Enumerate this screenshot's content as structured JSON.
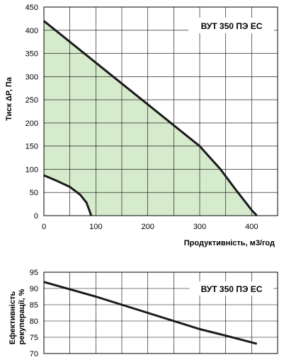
{
  "chart_data": [
    {
      "type": "area",
      "title": "ВУТ 350 ПЭ ЕС",
      "xlabel": "Продуктивність, м3/год",
      "ylabel": "Тиск ΔP, Па",
      "xlim": [
        0,
        450
      ],
      "ylim": [
        0,
        450
      ],
      "xticks": [
        0,
        100,
        200,
        300,
        400
      ],
      "yticks": [
        0,
        50,
        100,
        150,
        200,
        250,
        300,
        350,
        400,
        450
      ],
      "grid": true,
      "series": [
        {
          "role": "max-curve",
          "x": [
            0,
            50,
            100,
            150,
            200,
            250,
            300,
            340,
            370,
            400,
            410
          ],
          "y": [
            420,
            375,
            330,
            285,
            240,
            195,
            150,
            100,
            55,
            12,
            0
          ]
        },
        {
          "role": "min-curve",
          "x": [
            0,
            25,
            50,
            70,
            82,
            88,
            91
          ],
          "y": [
            87,
            75,
            62,
            45,
            28,
            10,
            0
          ]
        }
      ],
      "fill_color": "#d6ebcc",
      "line_color": "#1a1a1a"
    },
    {
      "type": "line",
      "title": "ВУТ 350 ПЭ ЕС",
      "ylabel": "Ефективність рекуперації, %",
      "xlim": [
        0,
        450
      ],
      "ylim": [
        70,
        95
      ],
      "yticks": [
        70,
        75,
        80,
        85,
        90,
        95
      ],
      "xgrid": [
        50,
        100,
        150,
        200,
        250,
        300,
        350,
        400
      ],
      "grid": true,
      "series": [
        {
          "x": [
            0,
            100,
            200,
            300,
            350,
            410
          ],
          "y": [
            92,
            87.5,
            82.5,
            77.5,
            75.5,
            73
          ]
        }
      ],
      "line_color": "#1a1a1a"
    }
  ]
}
